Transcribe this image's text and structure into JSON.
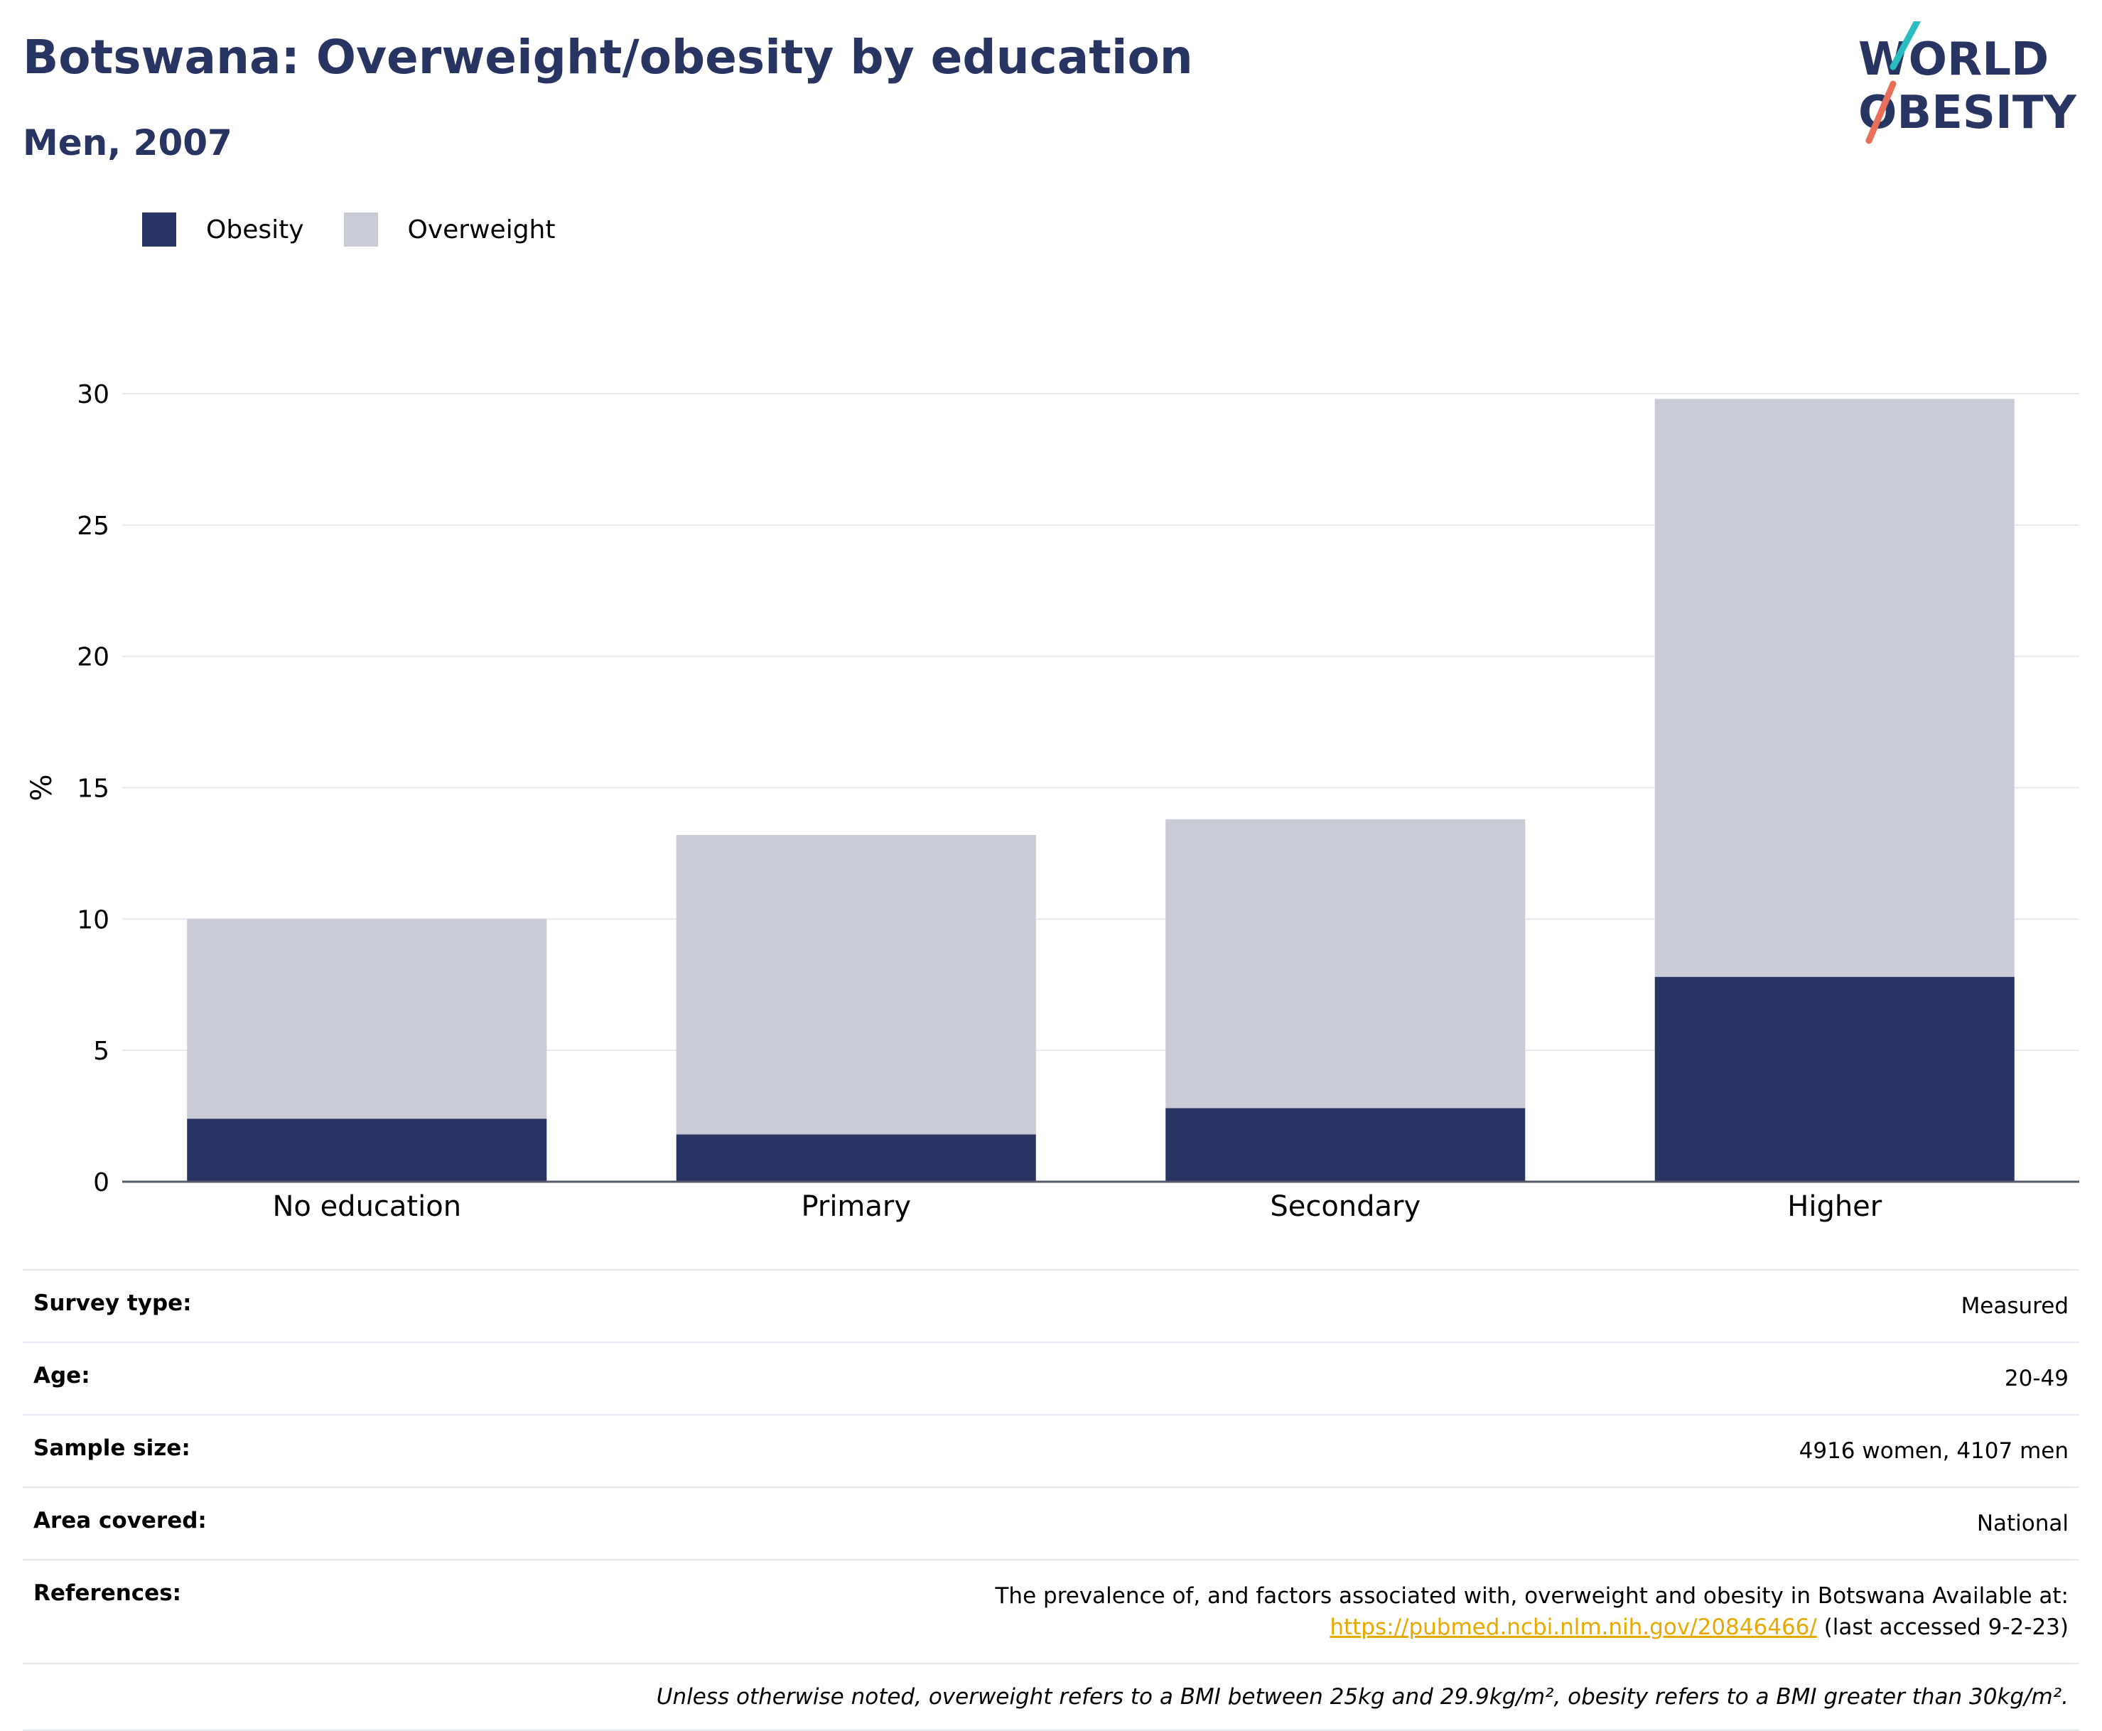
{
  "title": "Botswana: Overweight/obesity by education",
  "subtitle": "Men, 2007",
  "logo": {
    "line1": "WORLD",
    "line2": "OBESITY",
    "accent_colors": [
      "#2bbcc1",
      "#e8705a"
    ]
  },
  "legend": [
    {
      "label": "Obesity",
      "color": "#283462"
    },
    {
      "label": "Overweight",
      "color": "#c9cbd7"
    }
  ],
  "chart_data": {
    "type": "bar",
    "stacked": true,
    "categories": [
      "No education",
      "Primary",
      "Secondary",
      "Higher"
    ],
    "series": [
      {
        "name": "Obesity",
        "color": "#283462",
        "values": [
          2.4,
          1.8,
          2.8,
          7.8
        ]
      },
      {
        "name": "Overweight",
        "color": "#c9cbd7",
        "values": [
          7.6,
          11.4,
          11.0,
          22.0
        ]
      }
    ],
    "ylabel": "%",
    "ylim": [
      0,
      30
    ],
    "yticks": [
      0,
      5,
      10,
      15,
      20,
      25,
      30
    ],
    "grid": true,
    "legend_position": "top-left"
  },
  "info": {
    "rows": [
      {
        "key": "Survey type:",
        "value": "Measured"
      },
      {
        "key": "Age:",
        "value": "20-49"
      },
      {
        "key": "Sample size:",
        "value": "4916 women, 4107 men"
      },
      {
        "key": "Area covered:",
        "value": "National"
      }
    ],
    "references": {
      "key": "References:",
      "text": "The prevalence of, and factors associated with, overweight and obesity in Botswana Available at:",
      "link": "https://pubmed.ncbi.nlm.nih.gov/20846466/",
      "suffix": "(last accessed 9-2-23)"
    },
    "footnote": "Unless otherwise noted, overweight refers to a BMI between 25kg and 29.9kg/m², obesity refers to a BMI greater than 30kg/m²."
  }
}
